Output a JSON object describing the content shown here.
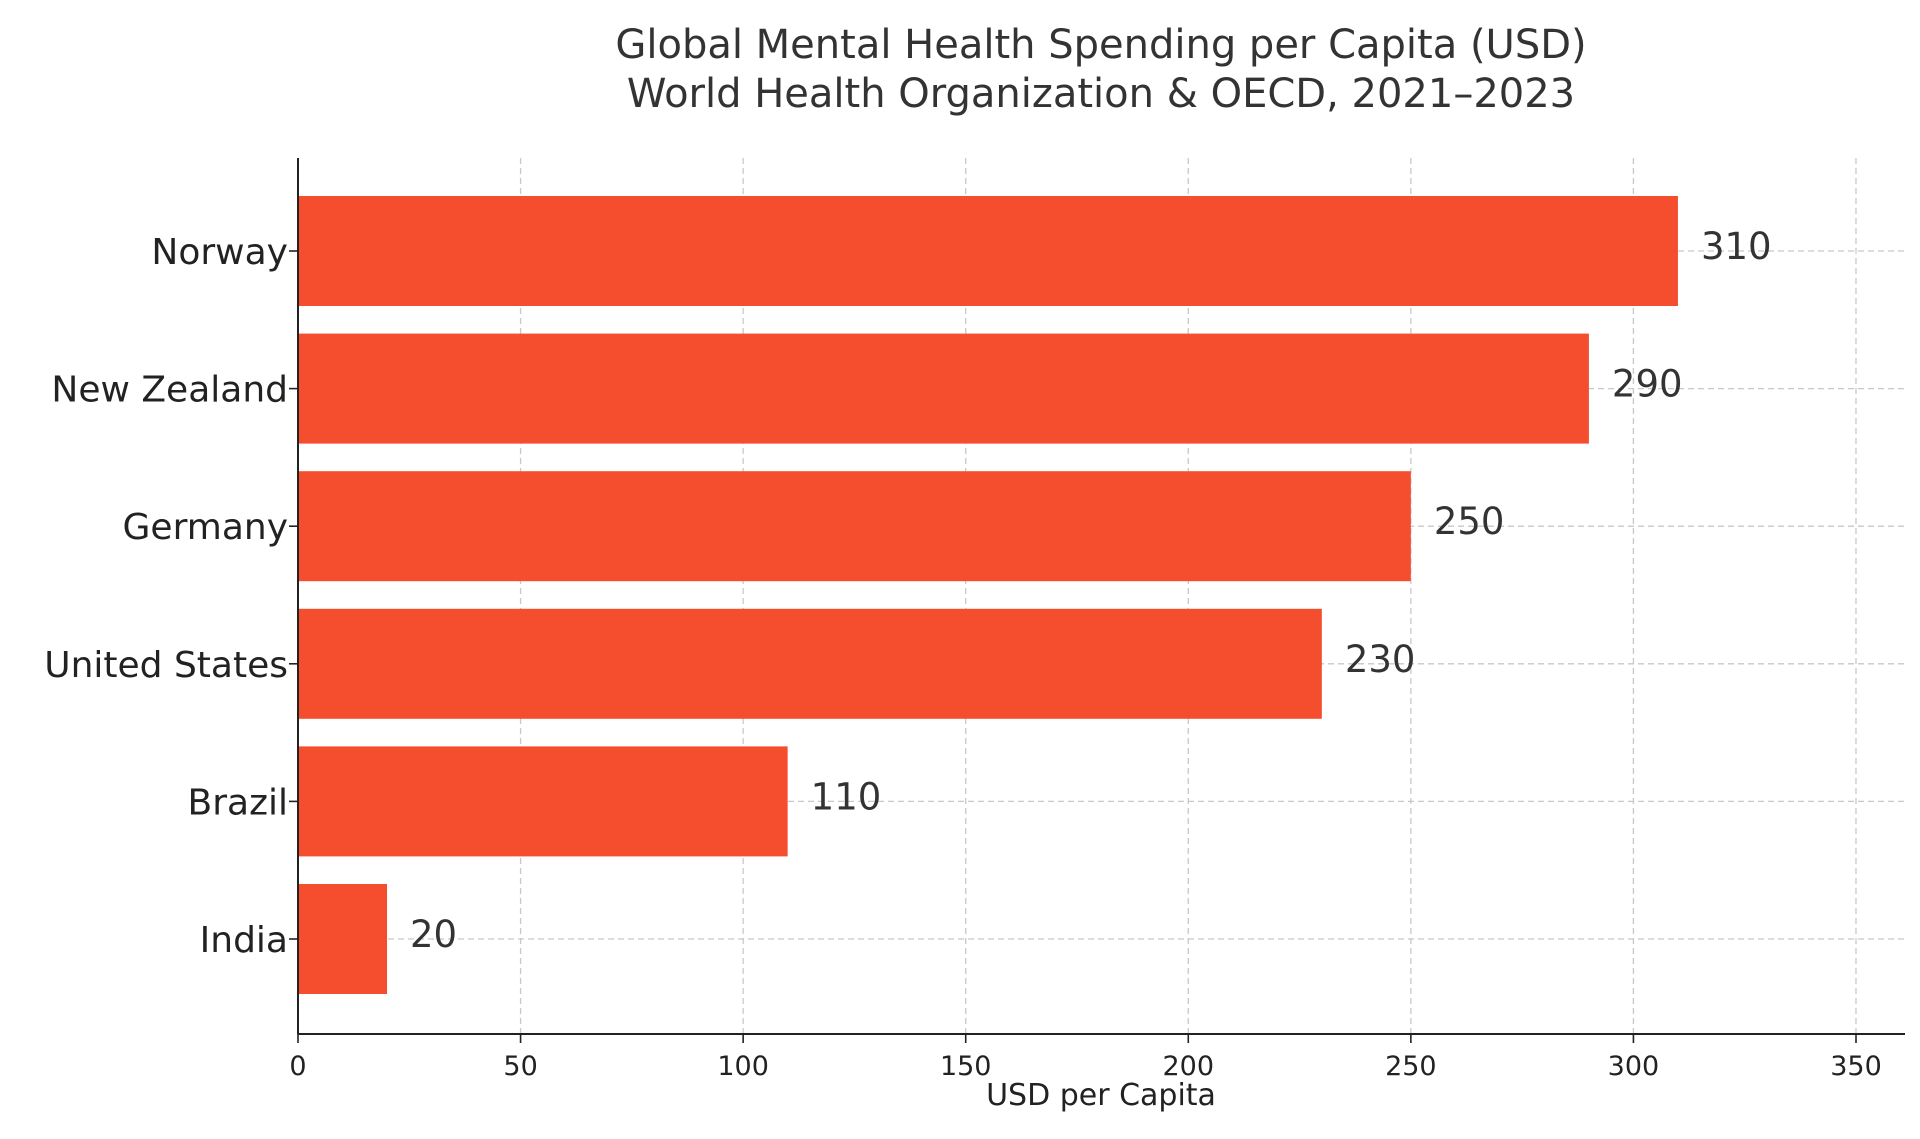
{
  "chart_data": {
    "type": "bar",
    "orientation": "horizontal",
    "title": "Global Mental Health Spending per Capita (USD)",
    "subtitle": "World Health Organization & OECD, 2021–2023",
    "xlabel": "USD per Capita",
    "ylabel": "",
    "categories": [
      "Norway",
      "New Zealand",
      "Germany",
      "United States",
      "Brazil",
      "India"
    ],
    "values": [
      310,
      290,
      250,
      230,
      110,
      20
    ],
    "value_labels": [
      "310",
      "290",
      "250",
      "230",
      "110",
      "20"
    ],
    "xlim": [
      0,
      360
    ],
    "xticks": [
      0,
      50,
      100,
      150,
      200,
      250,
      300,
      350
    ],
    "xtick_labels": [
      "0",
      "50",
      "100",
      "150",
      "200",
      "250",
      "300",
      "350"
    ],
    "grid": true,
    "bar_color": "#f44e2e"
  }
}
